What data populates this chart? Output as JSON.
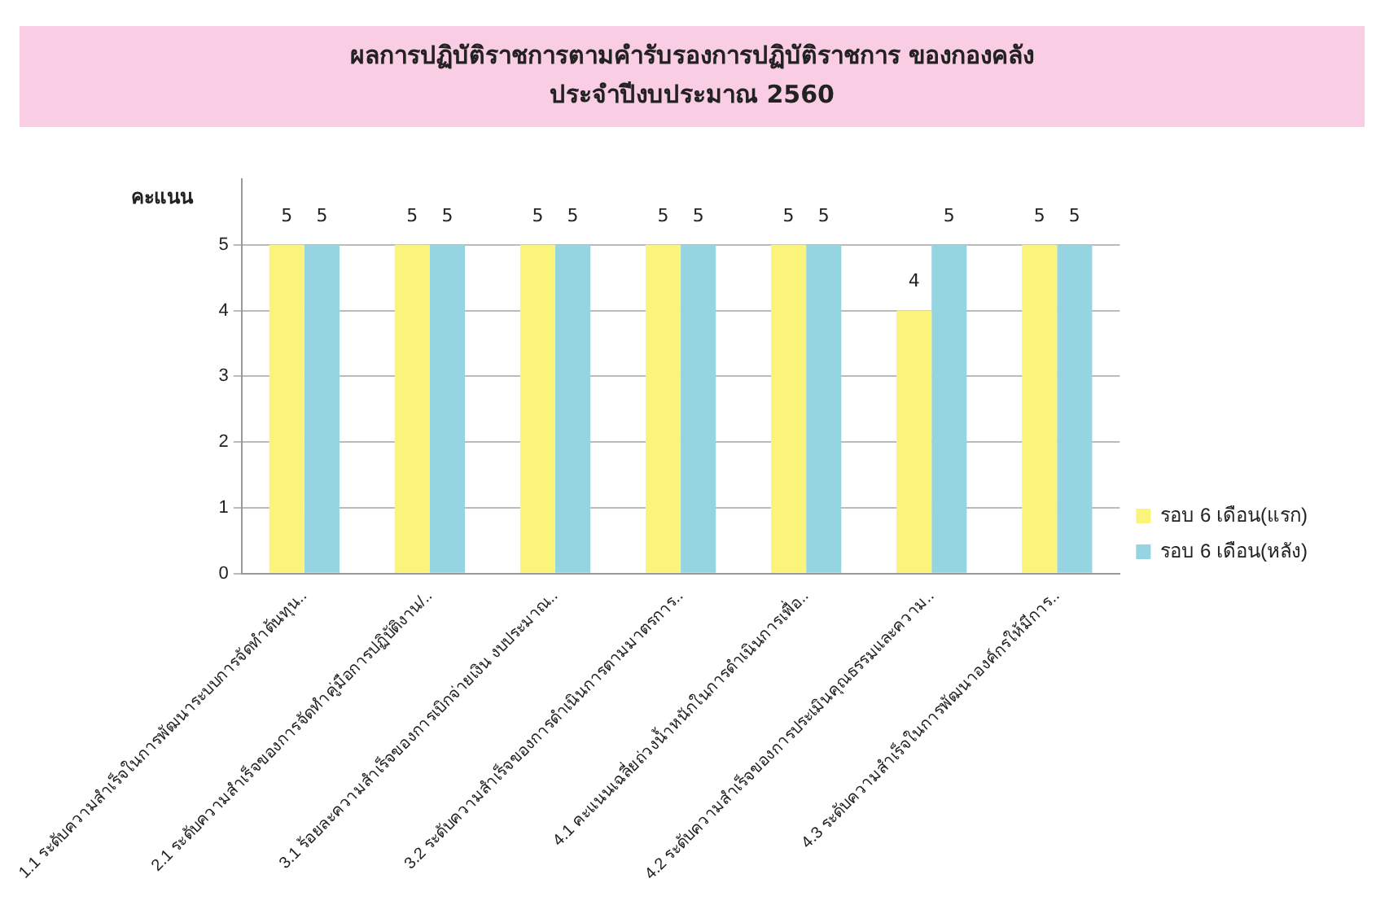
{
  "chart_data": {
    "type": "bar",
    "title": "ผลการปฏิบัติราชการตามคำรับรองการปฏิบัติราชการ ของกองคลัง",
    "subtitle": "ประจำปีงบประมาณ 2560",
    "ylabel": "คะแนน",
    "categories": [
      "1.1 ระดับความสำเร็จในการพัฒนาระบบการจัดทำต้นทุน..",
      "2.1 ระดับความสำเร็จของการจัดทำคู่มือการปฏิบัติงาน/..",
      "3.1 ร้อยละความสำเร็จของการเบิกจ่ายเงิน งบประมาณ..",
      "3.2 ระดับความสำเร็จของการดำเนินการตามมาตรการ..",
      "4.1 คะแนนเฉลี่ยถ่วงน้ำหนักในการดำเนินการเพื่อ..",
      "4.2 ระดับความสำเร็จของการประเมินคุณธรรมและความ..",
      "4.3 ระดับความสำเร็จในการพัฒนาองค์กรให้มีการ.."
    ],
    "series": [
      {
        "name": "รอบ 6 เดือน(แรก)",
        "color": "#fbf47a",
        "values": [
          5,
          5,
          5,
          5,
          5,
          4,
          5
        ]
      },
      {
        "name": "รอบ 6 เดือน(หลัง)",
        "color": "#94d5e1",
        "values": [
          5,
          5,
          5,
          5,
          5,
          5,
          5
        ]
      }
    ],
    "ylim": [
      0,
      6
    ],
    "yticks": [
      0,
      1,
      2,
      3,
      4,
      5
    ],
    "grid": "y",
    "legend": "right",
    "data_labels": true
  }
}
